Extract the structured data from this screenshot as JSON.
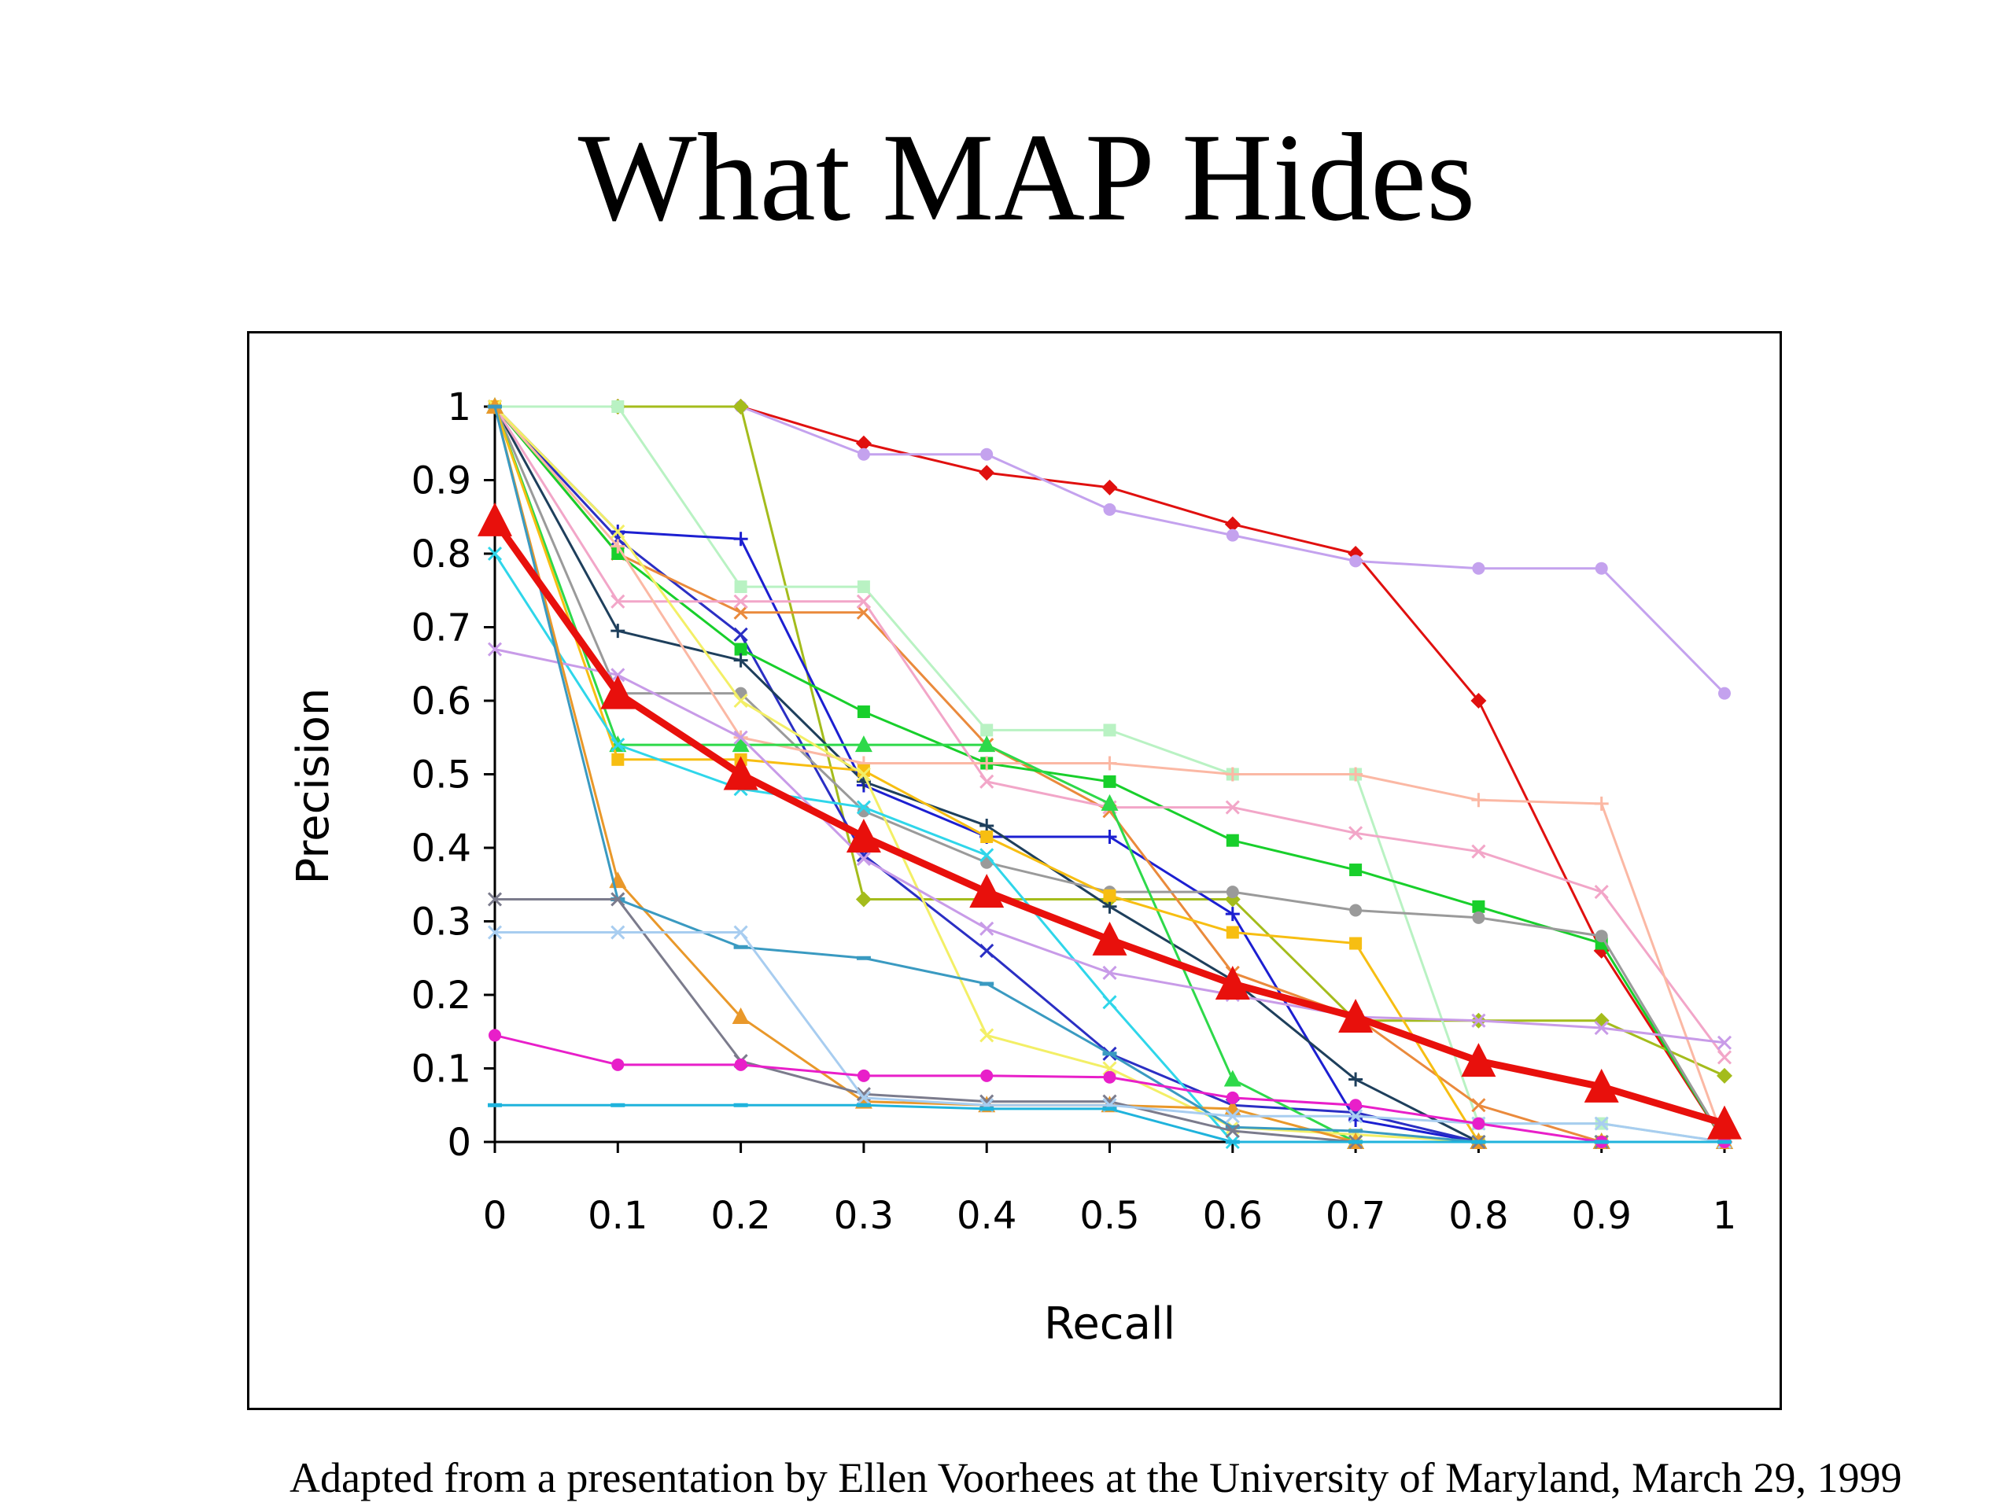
{
  "title": "What MAP Hides",
  "caption": "Adapted from a presentation by Ellen Voorhees at the University of Maryland, March 29, 1999",
  "chart_data": {
    "type": "line",
    "xlabel": "Recall",
    "ylabel": "Precision",
    "xlim": [
      0,
      1
    ],
    "ylim": [
      0,
      1
    ],
    "xticks": [
      "0",
      "0.1",
      "0.2",
      "0.3",
      "0.4",
      "0.5",
      "0.6",
      "0.7",
      "0.8",
      "0.9",
      "1"
    ],
    "yticks": [
      "0",
      "0.1",
      "0.2",
      "0.3",
      "0.4",
      "0.5",
      "0.6",
      "0.7",
      "0.8",
      "0.9",
      "1"
    ],
    "grid": false,
    "legend": "none",
    "x": [
      0,
      0.1,
      0.2,
      0.3,
      0.4,
      0.5,
      0.6,
      0.7,
      0.8,
      0.9,
      1
    ],
    "series": [
      {
        "color": "#e0100f",
        "marker": "diamond",
        "values": [
          1,
          1,
          1,
          0.95,
          0.91,
          0.89,
          0.84,
          0.8,
          0.6,
          0.26,
          0
        ]
      },
      {
        "color": "#c4a2ee",
        "marker": "circle",
        "values": [
          1,
          1,
          1,
          0.935,
          0.935,
          0.86,
          0.825,
          0.79,
          0.78,
          0.78,
          0.61
        ]
      },
      {
        "color": "#a4bc1c",
        "marker": "diamond",
        "values": [
          1,
          1,
          1,
          0.33,
          0.33,
          0.33,
          0.33,
          0.165,
          0.165,
          0.165,
          0.09
        ]
      },
      {
        "color": "#b9f2c3",
        "marker": "square",
        "values": [
          1,
          1,
          0.755,
          0.755,
          0.56,
          0.56,
          0.5,
          0.5,
          0.025,
          0.025,
          0
        ]
      },
      {
        "color": "#1c1fd1",
        "marker": "plus",
        "values": [
          1,
          0.83,
          0.82,
          0.485,
          0.415,
          0.415,
          0.31,
          0.03,
          0,
          0,
          0
        ]
      },
      {
        "color": "#2b2fc4",
        "marker": "x",
        "values": [
          1,
          0.82,
          0.69,
          0.39,
          0.26,
          0.12,
          0.05,
          0.04,
          0,
          0,
          0
        ]
      },
      {
        "color": "#ea8a3c",
        "marker": "x",
        "values": [
          1,
          0.8,
          0.72,
          0.72,
          0.54,
          0.45,
          0.23,
          0.17,
          0.05,
          0,
          0
        ]
      },
      {
        "color": "#18cf2b",
        "marker": "square",
        "values": [
          1,
          0.8,
          0.67,
          0.585,
          0.515,
          0.49,
          0.41,
          0.37,
          0.32,
          0.27,
          0
        ]
      },
      {
        "color": "#1e3f5c",
        "marker": "plus",
        "values": [
          1,
          0.695,
          0.655,
          0.49,
          0.43,
          0.32,
          0.22,
          0.085,
          0,
          0,
          0
        ]
      },
      {
        "color": "#f2a6c8",
        "marker": "x",
        "values": [
          1,
          0.735,
          0.735,
          0.735,
          0.49,
          0.455,
          0.455,
          0.42,
          0.395,
          0.34,
          0.115
        ]
      },
      {
        "color": "#9a9a9a",
        "marker": "circle",
        "values": [
          1,
          0.61,
          0.61,
          0.45,
          0.38,
          0.34,
          0.34,
          0.315,
          0.305,
          0.28,
          0
        ]
      },
      {
        "color": "#fbb8a4",
        "marker": "plus",
        "values": [
          1,
          0.81,
          0.55,
          0.515,
          0.515,
          0.515,
          0.5,
          0.5,
          0.465,
          0.46,
          0
        ]
      },
      {
        "color": "#2ed94a",
        "marker": "triangle",
        "values": [
          1,
          0.54,
          0.54,
          0.54,
          0.54,
          0.46,
          0.085,
          0,
          0,
          0,
          0
        ]
      },
      {
        "color": "#f7be12",
        "marker": "square",
        "values": [
          1,
          0.52,
          0.52,
          0.505,
          0.415,
          0.335,
          0.285,
          0.27,
          0,
          0,
          0
        ]
      },
      {
        "color": "#f3ef66",
        "marker": "x",
        "values": [
          1,
          0.83,
          0.6,
          0.5,
          0.145,
          0.1,
          0.02,
          0.01,
          0,
          0,
          0
        ]
      },
      {
        "color": "#2fd6ea",
        "marker": "x",
        "values": [
          0.8,
          0.54,
          0.48,
          0.455,
          0.39,
          0.19,
          0,
          0,
          0,
          0,
          0
        ]
      },
      {
        "color": "#c89be8",
        "marker": "x",
        "values": [
          0.67,
          0.635,
          0.55,
          0.385,
          0.29,
          0.23,
          0.2,
          0.17,
          0.165,
          0.155,
          0.135
        ]
      },
      {
        "color": "#e9982a",
        "marker": "triangle",
        "values": [
          1,
          0.355,
          0.17,
          0.055,
          0.05,
          0.05,
          0.045,
          0,
          0,
          0,
          0
        ]
      },
      {
        "color": "#3a9ac1",
        "marker": "dash",
        "values": [
          1,
          0.33,
          0.265,
          0.25,
          0.215,
          0.12,
          0.02,
          0.015,
          0,
          0,
          0
        ]
      },
      {
        "color": "#7b7b8c",
        "marker": "x",
        "values": [
          0.33,
          0.33,
          0.11,
          0.065,
          0.055,
          0.055,
          0.015,
          0,
          0,
          0,
          0
        ]
      },
      {
        "color": "#a8cdf0",
        "marker": "x",
        "values": [
          0.285,
          0.285,
          0.285,
          0.06,
          0.05,
          0.05,
          0.035,
          0.035,
          0.025,
          0.025,
          0
        ]
      },
      {
        "color": "#e81fc9",
        "marker": "circle",
        "values": [
          0.145,
          0.105,
          0.105,
          0.09,
          0.09,
          0.088,
          0.06,
          0.05,
          0.025,
          0,
          0
        ]
      },
      {
        "color": "#1fb3dc",
        "marker": "dash",
        "values": [
          0.05,
          0.05,
          0.05,
          0.05,
          0.045,
          0.045,
          0,
          0,
          0,
          0,
          0
        ]
      },
      {
        "color": "#e8100c",
        "marker": "triangle",
        "bold": true,
        "values": [
          0.845,
          0.61,
          0.5,
          0.415,
          0.34,
          0.275,
          0.215,
          0.17,
          0.11,
          0.075,
          0.025
        ]
      }
    ]
  }
}
